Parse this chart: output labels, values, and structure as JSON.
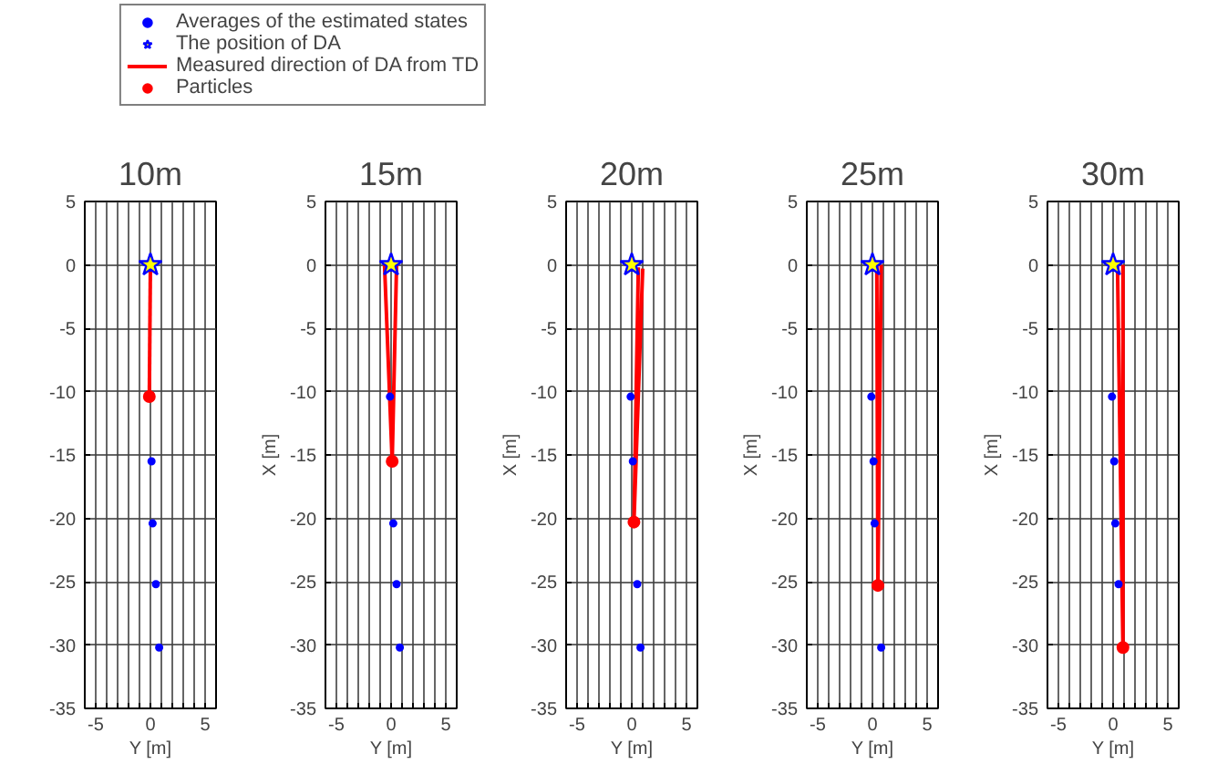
{
  "chart_data": [
    {
      "type": "scatter",
      "title": "10m",
      "xlabel": "Y [m]",
      "xlim": [
        -6,
        6
      ],
      "ylim": [
        -35,
        5
      ],
      "xticks": [
        {
          "value": -6,
          "label": null
        },
        -5,
        {
          "value": -4,
          "label": null
        },
        {
          "value": -3,
          "label": null
        },
        {
          "value": -2,
          "label": null
        },
        {
          "value": -1,
          "label": null
        },
        0,
        {
          "value": 1,
          "label": null
        },
        {
          "value": 2,
          "label": null
        },
        {
          "value": 3,
          "label": null
        },
        {
          "value": 4,
          "label": null
        },
        5,
        {
          "value": 6,
          "label": null
        }
      ],
      "yticks": [
        -35,
        -30,
        -25,
        -20,
        -15,
        -10,
        -5,
        0,
        5
      ],
      "grid": true,
      "legend": "top",
      "series": [
        {
          "name": "Averages of the estimated states",
          "marker": "circle",
          "color": "#0000ff",
          "x": [
            null,
            0.1,
            0.2,
            0.5,
            0.8
          ],
          "values": [
            null,
            -15.5,
            -20.4,
            -25.2,
            -30.2
          ]
        },
        {
          "name": "The position of DA",
          "marker": "star",
          "color": "#ffff00",
          "x": [
            0
          ],
          "values": [
            0
          ]
        },
        {
          "name": "Measured direction of DA from TD",
          "type": "line",
          "color": "#ff0000",
          "x": [
            0,
            -0.1
          ],
          "values": [
            0,
            -10.4
          ]
        },
        {
          "name": "Particles",
          "marker": "circle",
          "color": "#ff0000",
          "x": [
            -0.1
          ],
          "values": [
            -10.4
          ]
        }
      ]
    },
    {
      "type": "scatter",
      "title": "15m",
      "xlabel": "Y [m]",
      "ylabel": "X [m]",
      "xlim": [
        -6,
        6
      ],
      "ylim": [
        -35,
        5
      ],
      "xticks": [
        {
          "value": -6,
          "label": null
        },
        -5,
        {
          "value": -4,
          "label": null
        },
        {
          "value": -3,
          "label": null
        },
        {
          "value": -2,
          "label": null
        },
        {
          "value": -1,
          "label": null
        },
        0,
        {
          "value": 1,
          "label": null
        },
        {
          "value": 2,
          "label": null
        },
        {
          "value": 3,
          "label": null
        },
        {
          "value": 4,
          "label": null
        },
        5,
        {
          "value": 6,
          "label": null
        }
      ],
      "yticks": [
        -35,
        -30,
        -25,
        -20,
        -15,
        -10,
        -5,
        0,
        5
      ],
      "grid": true,
      "series": [
        {
          "marker": "circle",
          "color": "#0000ff",
          "x": [
            -0.1,
            null,
            0.2,
            0.5,
            0.8
          ],
          "values": [
            -10.4,
            null,
            -20.4,
            -25.2,
            -30.2
          ]
        },
        {
          "marker": "star",
          "color": "#ffff00",
          "x": [
            0
          ],
          "values": [
            0
          ]
        },
        {
          "type": "line",
          "color": "#ff0000",
          "x": [
            -0.6,
            0.1,
            0.5
          ],
          "values": [
            0,
            -15.5,
            0
          ]
        },
        {
          "marker": "circle",
          "color": "#ff0000",
          "x": [
            0.1
          ],
          "values": [
            -15.5
          ]
        }
      ]
    },
    {
      "type": "scatter",
      "title": "20m",
      "xlabel": "Y [m]",
      "ylabel": "X [m]",
      "xlim": [
        -6,
        6
      ],
      "ylim": [
        -35,
        5
      ],
      "xticks": [
        {
          "value": -6,
          "label": null
        },
        -5,
        {
          "value": -4,
          "label": null
        },
        {
          "value": -3,
          "label": null
        },
        {
          "value": -2,
          "label": null
        },
        {
          "value": -1,
          "label": null
        },
        0,
        {
          "value": 1,
          "label": null
        },
        {
          "value": 2,
          "label": null
        },
        {
          "value": 3,
          "label": null
        },
        {
          "value": 4,
          "label": null
        },
        5,
        {
          "value": 6,
          "label": null
        }
      ],
      "yticks": [
        -35,
        -30,
        -25,
        -20,
        -15,
        -10,
        -5,
        0,
        5
      ],
      "grid": true,
      "series": [
        {
          "marker": "circle",
          "color": "#0000ff",
          "x": [
            -0.1,
            0.1,
            null,
            0.5,
            0.8
          ],
          "values": [
            -10.4,
            -15.5,
            null,
            -25.2,
            -30.2
          ]
        },
        {
          "marker": "star",
          "color": "#ffff00",
          "x": [
            0
          ],
          "values": [
            0
          ]
        },
        {
          "type": "line",
          "color": "#ff0000",
          "x": [
            0.6,
            0.2,
            1.0
          ],
          "values": [
            -0.2,
            -20.3,
            -0.3
          ]
        },
        {
          "marker": "circle",
          "color": "#ff0000",
          "x": [
            0.2
          ],
          "values": [
            -20.3
          ]
        }
      ]
    },
    {
      "type": "scatter",
      "title": "25m",
      "xlabel": "Y [m]",
      "ylabel": "X [m]",
      "xlim": [
        -6,
        6
      ],
      "ylim": [
        -35,
        5
      ],
      "xticks": [
        {
          "value": -6,
          "label": null
        },
        -5,
        {
          "value": -4,
          "label": null
        },
        {
          "value": -3,
          "label": null
        },
        {
          "value": -2,
          "label": null
        },
        {
          "value": -1,
          "label": null
        },
        0,
        {
          "value": 1,
          "label": null
        },
        {
          "value": 2,
          "label": null
        },
        {
          "value": 3,
          "label": null
        },
        {
          "value": 4,
          "label": null
        },
        5,
        {
          "value": 6,
          "label": null
        }
      ],
      "yticks": [
        -35,
        -30,
        -25,
        -20,
        -15,
        -10,
        -5,
        0,
        5
      ],
      "grid": true,
      "series": [
        {
          "marker": "circle",
          "color": "#0000ff",
          "x": [
            -0.1,
            0.1,
            0.2,
            null,
            0.8
          ],
          "values": [
            -10.4,
            -15.5,
            -20.4,
            null,
            -30.2
          ]
        },
        {
          "marker": "star",
          "color": "#ffff00",
          "x": [
            0
          ],
          "values": [
            0
          ]
        },
        {
          "type": "line",
          "color": "#ff0000",
          "x": [
            0.4,
            0.5,
            0.8
          ],
          "values": [
            0,
            -25.3,
            0
          ]
        },
        {
          "marker": "circle",
          "color": "#ff0000",
          "x": [
            0.5
          ],
          "values": [
            -25.3
          ]
        }
      ]
    },
    {
      "type": "scatter",
      "title": "30m",
      "xlabel": "Y [m]",
      "ylabel": "X [m]",
      "xlim": [
        -6,
        6
      ],
      "ylim": [
        -35,
        5
      ],
      "xticks": [
        {
          "value": -6,
          "label": null
        },
        -5,
        {
          "value": -4,
          "label": null
        },
        {
          "value": -3,
          "label": null
        },
        {
          "value": -2,
          "label": null
        },
        {
          "value": -1,
          "label": null
        },
        0,
        {
          "value": 1,
          "label": null
        },
        {
          "value": 2,
          "label": null
        },
        {
          "value": 3,
          "label": null
        },
        {
          "value": 4,
          "label": null
        },
        5,
        {
          "value": 6,
          "label": null
        }
      ],
      "yticks": [
        -35,
        -30,
        -25,
        -20,
        -15,
        -10,
        -5,
        0,
        5
      ],
      "grid": true,
      "series": [
        {
          "marker": "circle",
          "color": "#0000ff",
          "x": [
            -0.1,
            0.1,
            0.2,
            0.5,
            null
          ],
          "values": [
            -10.4,
            -15.5,
            -20.4,
            -25.2,
            null
          ]
        },
        {
          "marker": "star",
          "color": "#ffff00",
          "x": [
            0
          ],
          "values": [
            0
          ]
        },
        {
          "type": "line",
          "color": "#ff0000",
          "x": [
            0.4,
            0.9,
            0.9
          ],
          "values": [
            0,
            -30.2,
            0
          ]
        },
        {
          "marker": "circle",
          "color": "#ff0000",
          "x": [
            0.9
          ],
          "values": [
            -30.2
          ]
        }
      ]
    }
  ]
}
